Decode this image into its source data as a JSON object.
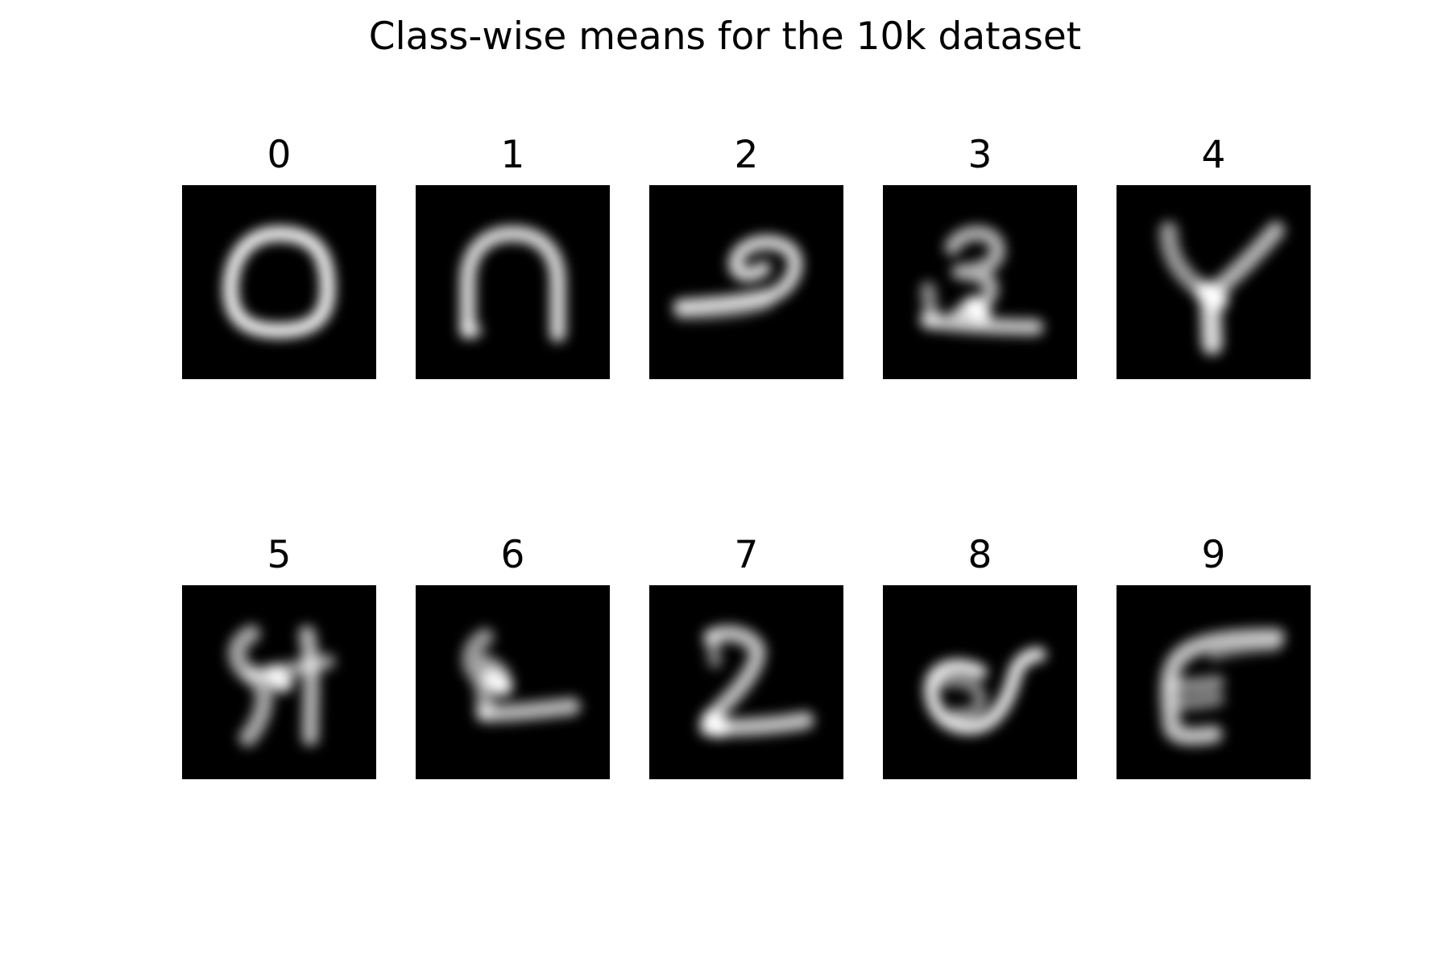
{
  "chart_data": {
    "type": "heatmap",
    "title": "Class-wise means for the 10k dataset",
    "colormap": "gray",
    "background_color": "#000000",
    "grid": false,
    "axes_visible": false,
    "layout": {
      "rows": 2,
      "cols": 5
    },
    "panels": [
      {
        "label": "0"
      },
      {
        "label": "1"
      },
      {
        "label": "2"
      },
      {
        "label": "3"
      },
      {
        "label": "4"
      },
      {
        "label": "5"
      },
      {
        "label": "6"
      },
      {
        "label": "7"
      },
      {
        "label": "8"
      },
      {
        "label": "9"
      }
    ]
  }
}
